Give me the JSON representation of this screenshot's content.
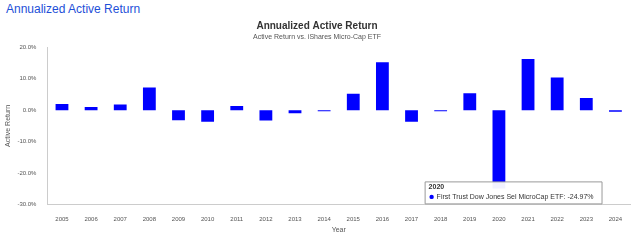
{
  "header": "Annualized Active Return",
  "chart_data": {
    "type": "bar",
    "title": "Annualized Active Return",
    "subtitle": "Active Return vs. iShares Micro-Cap ETF",
    "x_label": "Year",
    "y_label": "Active Return",
    "categories": [
      "2005",
      "2006",
      "2007",
      "2008",
      "2009",
      "2010",
      "2011",
      "2012",
      "2013",
      "2014",
      "2015",
      "2016",
      "2017",
      "2018",
      "2019",
      "2020",
      "2021",
      "2022",
      "2023",
      "2024"
    ],
    "values": [
      2.0,
      1.0,
      1.8,
      7.2,
      -3.2,
      -3.7,
      1.3,
      -3.3,
      -1.0,
      -0.3,
      5.2,
      15.3,
      -3.7,
      -0.3,
      5.4,
      -24.97,
      16.3,
      10.4,
      3.9,
      -0.5
    ],
    "color": "#0000ff",
    "ylim": [
      -30,
      20
    ],
    "yticks": [
      {
        "value": -30,
        "label": "-30.0%"
      },
      {
        "value": -20,
        "label": "-20.0%"
      },
      {
        "value": -10,
        "label": "-10.0%"
      },
      {
        "value": 0,
        "label": "0.0%"
      },
      {
        "value": 10,
        "label": "10.0%"
      },
      {
        "value": 20,
        "label": "20.0%"
      }
    ],
    "grid": false,
    "annotation": {
      "category": "2020",
      "text": "First Trust Dow Jones Sel MicroCap ETF: -24.97%"
    }
  }
}
